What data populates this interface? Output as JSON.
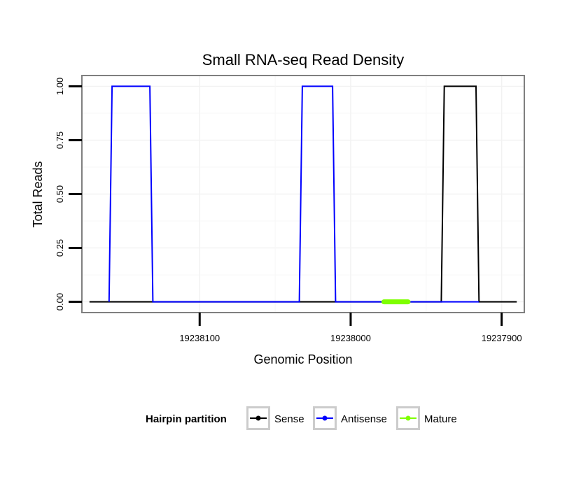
{
  "chart_data": {
    "type": "line",
    "title": "Small RNA-seq Read Density",
    "xlabel": "Genomic Position",
    "ylabel": "Total Reads",
    "x_reversed": true,
    "xlim": [
      19238178,
      19237885
    ],
    "ylim": [
      -0.05,
      1.05
    ],
    "x_ticks": [
      19238100,
      19238000,
      19237900
    ],
    "x_tick_labels": [
      "19238100",
      "19238000",
      "19237900"
    ],
    "y_ticks": [
      0,
      0.25,
      0.5,
      0.75,
      1.0
    ],
    "y_tick_labels": [
      "0.00",
      "0.25",
      "0.50",
      "0.75",
      "1.00"
    ],
    "grid": true,
    "legend_position": "bottom",
    "legend": {
      "title": "Hairpin partition",
      "entries": [
        "Sense",
        "Antisense",
        "Mature"
      ]
    },
    "series": [
      {
        "name": "Sense",
        "color": "#000000",
        "x": [
          19238173,
          19237940,
          19237938,
          19237917,
          19237915,
          19237890
        ],
        "y": [
          0,
          0,
          1,
          1,
          0,
          0
        ]
      },
      {
        "name": "Antisense",
        "color": "#0000ff",
        "x": [
          19238160,
          19238158,
          19238133,
          19238131,
          19238034,
          19238032,
          19238012,
          19238010,
          19237995,
          19237940,
          19237915
        ],
        "y": [
          0,
          1,
          1,
          0,
          0,
          1,
          1,
          0,
          0,
          0,
          0
        ]
      },
      {
        "name": "Mature",
        "color": "#7fff00",
        "x": [
          19237978,
          19237962
        ],
        "y": [
          0,
          0
        ]
      }
    ]
  }
}
